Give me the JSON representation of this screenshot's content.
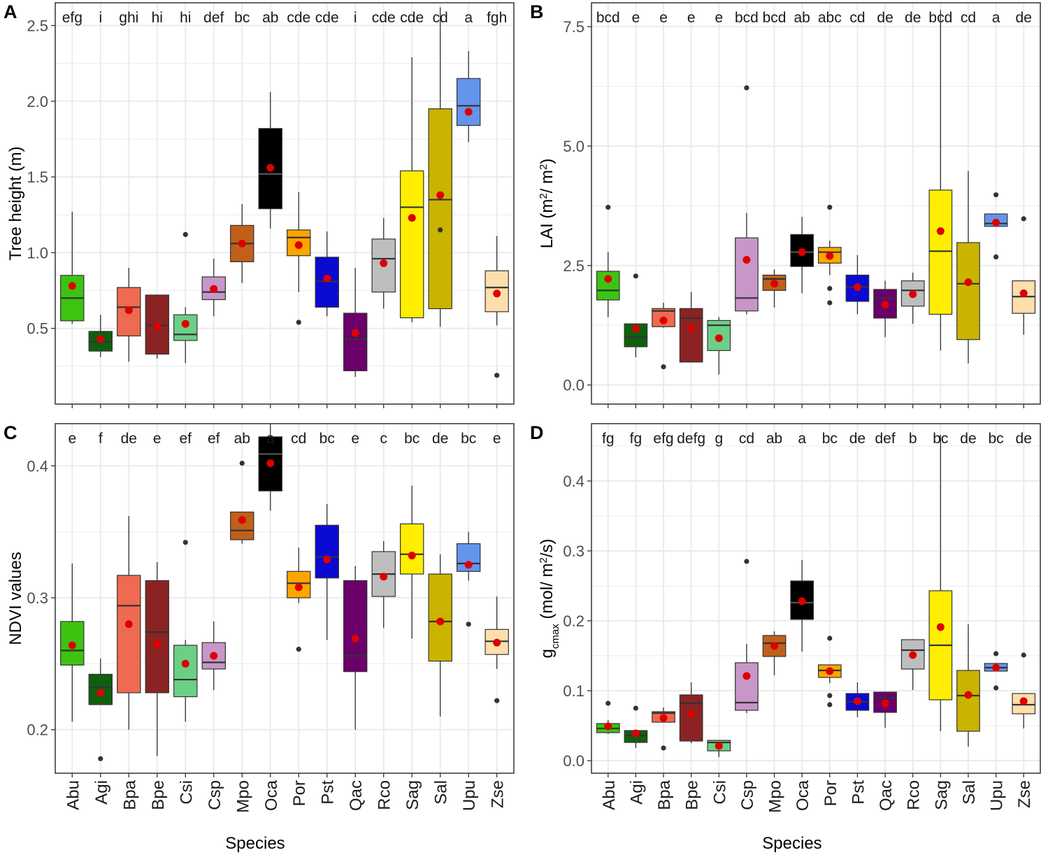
{
  "figure": {
    "xlabel_bottom_left": "Species",
    "xlabel_bottom_right": "Species"
  },
  "colors": {
    "Abu": "#3cc411",
    "Agi": "#0f5f0f",
    "Bpa": "#ee6a50",
    "Bpe": "#8b2323",
    "Csi": "#6ccf86",
    "Csp": "#c896c8",
    "Mpo": "#c0601a",
    "Oca": "#000000",
    "Por": "#ffa500",
    "Pst": "#0a0ad2",
    "Qac": "#6b006b",
    "Rco": "#bebebe",
    "Sag": "#ffee00",
    "Sal": "#c9b400",
    "Upu": "#6495ed",
    "Zse": "#ffdead",
    "mean_point": "#dd0000",
    "grid": "#ebebeb",
    "outlier": "#333333"
  },
  "chart_data": [
    {
      "panel": "A",
      "type": "box",
      "categories": [
        "Abu",
        "Agi",
        "Bpa",
        "Bpe",
        "Csi",
        "Csp",
        "Mpo",
        "Oca",
        "Por",
        "Pst",
        "Qac",
        "Rco",
        "Sag",
        "Sal",
        "Upu",
        "Zse"
      ],
      "ylabel": "Tree height (m)",
      "ylim": [
        0.0,
        2.65
      ],
      "yticks": [
        0.5,
        1.0,
        1.5,
        2.0,
        2.5
      ],
      "ytick_labels": [
        "0.5",
        "1.0",
        "1.5",
        "2.0",
        "2.5"
      ],
      "significance": [
        "efg",
        "i",
        "ghi",
        "hi",
        "hi",
        "def",
        "bc",
        "ab",
        "cde",
        "cde",
        "i",
        "cde",
        "cde",
        "cd",
        "a",
        "fgh"
      ],
      "boxes": [
        {
          "wlo": 0.53,
          "q1": 0.55,
          "med": 0.7,
          "q3": 0.85,
          "whi": 1.27,
          "mean": 0.78,
          "out": []
        },
        {
          "wlo": 0.31,
          "q1": 0.35,
          "med": 0.41,
          "q3": 0.48,
          "whi": 0.59,
          "mean": 0.43,
          "out": []
        },
        {
          "wlo": 0.28,
          "q1": 0.45,
          "med": 0.64,
          "q3": 0.77,
          "whi": 0.9,
          "mean": 0.62,
          "out": []
        },
        {
          "wlo": 0.3,
          "q1": 0.33,
          "med": 0.52,
          "q3": 0.72,
          "whi": 0.72,
          "mean": 0.51,
          "out": []
        },
        {
          "wlo": 0.27,
          "q1": 0.42,
          "med": 0.46,
          "q3": 0.59,
          "whi": 0.64,
          "mean": 0.53,
          "out": [
            1.12
          ]
        },
        {
          "wlo": 0.58,
          "q1": 0.69,
          "med": 0.74,
          "q3": 0.84,
          "whi": 0.96,
          "mean": 0.76,
          "out": []
        },
        {
          "wlo": 0.8,
          "q1": 0.94,
          "med": 1.06,
          "q3": 1.18,
          "whi": 1.32,
          "mean": 1.06,
          "out": []
        },
        {
          "wlo": 1.16,
          "q1": 1.29,
          "med": 1.52,
          "q3": 1.82,
          "whi": 2.06,
          "mean": 1.56,
          "out": []
        },
        {
          "wlo": 0.74,
          "q1": 0.98,
          "med": 1.1,
          "q3": 1.15,
          "whi": 1.4,
          "mean": 1.05,
          "out": [
            0.54
          ]
        },
        {
          "wlo": 0.58,
          "q1": 0.64,
          "med": 0.81,
          "q3": 0.97,
          "whi": 1.14,
          "mean": 0.83,
          "out": []
        },
        {
          "wlo": 0.18,
          "q1": 0.22,
          "med": 0.43,
          "q3": 0.6,
          "whi": 0.9,
          "mean": 0.47,
          "out": []
        },
        {
          "wlo": 0.63,
          "q1": 0.74,
          "med": 0.96,
          "q3": 1.09,
          "whi": 1.23,
          "mean": 0.93,
          "out": []
        },
        {
          "wlo": 0.54,
          "q1": 0.57,
          "med": 1.3,
          "q3": 1.54,
          "whi": 2.29,
          "mean": 1.23,
          "out": []
        },
        {
          "wlo": 0.51,
          "q1": 0.63,
          "med": 1.35,
          "q3": 1.95,
          "whi": 2.62,
          "mean": 1.38,
          "out": [
            1.15
          ]
        },
        {
          "wlo": 1.73,
          "q1": 1.84,
          "med": 1.97,
          "q3": 2.15,
          "whi": 2.33,
          "mean": 1.93,
          "out": []
        },
        {
          "wlo": 0.52,
          "q1": 0.61,
          "med": 0.77,
          "q3": 0.88,
          "whi": 1.11,
          "mean": 0.73,
          "out": [
            0.19
          ]
        }
      ]
    },
    {
      "panel": "B",
      "type": "box",
      "categories": [
        "Abu",
        "Agi",
        "Bpa",
        "Bpe",
        "Csi",
        "Csp",
        "Mpo",
        "Oca",
        "Por",
        "Pst",
        "Qac",
        "Rco",
        "Sag",
        "Sal",
        "Upu",
        "Zse"
      ],
      "ylabel": "LAI (m²/m²)",
      "ylim": [
        -0.4,
        8.0
      ],
      "yticks": [
        0.0,
        2.5,
        5.0,
        7.5
      ],
      "ytick_labels": [
        "0.0",
        "2.5",
        "5.0",
        "7.5"
      ],
      "significance": [
        "bcd",
        "e",
        "e",
        "e",
        "e",
        "bcd",
        "bcd",
        "ab",
        "abc",
        "cd",
        "de",
        "de",
        "bcd",
        "cd",
        "a",
        "de"
      ],
      "boxes": [
        {
          "wlo": 1.42,
          "q1": 1.78,
          "med": 1.98,
          "q3": 2.38,
          "whi": 2.78,
          "mean": 2.22,
          "out": [
            3.72
          ]
        },
        {
          "wlo": 0.58,
          "q1": 0.8,
          "med": 1.0,
          "q3": 1.28,
          "whi": 1.28,
          "mean": 1.18,
          "out": [
            2.28
          ]
        },
        {
          "wlo": 1.2,
          "q1": 1.22,
          "med": 1.55,
          "q3": 1.6,
          "whi": 1.72,
          "mean": 1.35,
          "out": [
            0.38
          ]
        },
        {
          "wlo": 0.48,
          "q1": 0.48,
          "med": 1.4,
          "q3": 1.6,
          "whi": 1.95,
          "mean": 1.18,
          "out": []
        },
        {
          "wlo": 0.22,
          "q1": 0.72,
          "med": 1.25,
          "q3": 1.35,
          "whi": 1.42,
          "mean": 0.98,
          "out": []
        },
        {
          "wlo": 1.48,
          "q1": 1.55,
          "med": 1.82,
          "q3": 3.08,
          "whi": 3.6,
          "mean": 2.62,
          "out": [
            6.22
          ]
        },
        {
          "wlo": 1.62,
          "q1": 1.98,
          "med": 2.22,
          "q3": 2.3,
          "whi": 2.42,
          "mean": 2.12,
          "out": []
        },
        {
          "wlo": 1.92,
          "q1": 2.48,
          "med": 2.78,
          "q3": 3.15,
          "whi": 3.52,
          "mean": 2.78,
          "out": []
        },
        {
          "wlo": 2.3,
          "q1": 2.55,
          "med": 2.78,
          "q3": 2.88,
          "whi": 3.02,
          "mean": 2.7,
          "out": [
            2.02,
            1.72,
            3.72
          ]
        },
        {
          "wlo": 1.48,
          "q1": 1.75,
          "med": 2.05,
          "q3": 2.3,
          "whi": 2.72,
          "mean": 2.05,
          "out": []
        },
        {
          "wlo": 1.0,
          "q1": 1.4,
          "med": 1.82,
          "q3": 2.0,
          "whi": 2.18,
          "mean": 1.68,
          "out": []
        },
        {
          "wlo": 1.28,
          "q1": 1.65,
          "med": 1.98,
          "q3": 2.18,
          "whi": 2.35,
          "mean": 1.9,
          "out": []
        },
        {
          "wlo": 0.72,
          "q1": 1.48,
          "med": 2.8,
          "q3": 4.08,
          "whi": 7.85,
          "mean": 3.22,
          "out": []
        },
        {
          "wlo": 0.45,
          "q1": 0.95,
          "med": 2.12,
          "q3": 2.98,
          "whi": 4.48,
          "mean": 2.15,
          "out": []
        },
        {
          "wlo": 3.32,
          "q1": 3.32,
          "med": 3.38,
          "q3": 3.58,
          "whi": 3.58,
          "mean": 3.4,
          "out": [
            3.98,
            2.68
          ]
        },
        {
          "wlo": 1.05,
          "q1": 1.5,
          "med": 1.85,
          "q3": 2.18,
          "whi": 2.18,
          "mean": 1.92,
          "out": [
            3.48
          ]
        }
      ]
    },
    {
      "panel": "C",
      "type": "box",
      "categories": [
        "Abu",
        "Agi",
        "Bpa",
        "Bpe",
        "Csi",
        "Csp",
        "Mpo",
        "Oca",
        "Por",
        "Pst",
        "Qac",
        "Rco",
        "Sag",
        "Sal",
        "Upu",
        "Zse"
      ],
      "ylabel": "NDVI values",
      "ylim": [
        0.167,
        0.432
      ],
      "yticks": [
        0.2,
        0.3,
        0.4
      ],
      "ytick_labels": [
        "0.2",
        "0.3",
        "0.4"
      ],
      "significance": [
        "e",
        "f",
        "de",
        "e",
        "ef",
        "ef",
        "ab",
        "a",
        "cd",
        "bc",
        "e",
        "c",
        "bc",
        "de",
        "bc",
        "e"
      ],
      "boxes": [
        {
          "wlo": 0.206,
          "q1": 0.249,
          "med": 0.26,
          "q3": 0.282,
          "whi": 0.326,
          "mean": 0.264,
          "out": []
        },
        {
          "wlo": 0.219,
          "q1": 0.219,
          "med": 0.232,
          "q3": 0.242,
          "whi": 0.254,
          "mean": 0.228,
          "out": [
            0.178
          ]
        },
        {
          "wlo": 0.2,
          "q1": 0.228,
          "med": 0.294,
          "q3": 0.317,
          "whi": 0.362,
          "mean": 0.28,
          "out": []
        },
        {
          "wlo": 0.18,
          "q1": 0.228,
          "med": 0.274,
          "q3": 0.313,
          "whi": 0.327,
          "mean": 0.265,
          "out": []
        },
        {
          "wlo": 0.206,
          "q1": 0.225,
          "med": 0.238,
          "q3": 0.264,
          "whi": 0.268,
          "mean": 0.25,
          "out": [
            0.342
          ]
        },
        {
          "wlo": 0.23,
          "q1": 0.246,
          "med": 0.251,
          "q3": 0.266,
          "whi": 0.282,
          "mean": 0.256,
          "out": []
        },
        {
          "wlo": 0.341,
          "q1": 0.344,
          "med": 0.351,
          "q3": 0.365,
          "whi": 0.365,
          "mean": 0.359,
          "out": [
            0.402
          ]
        },
        {
          "wlo": 0.366,
          "q1": 0.381,
          "med": 0.409,
          "q3": 0.422,
          "whi": 0.432,
          "mean": 0.402,
          "out": []
        },
        {
          "wlo": 0.296,
          "q1": 0.3,
          "med": 0.311,
          "q3": 0.32,
          "whi": 0.338,
          "mean": 0.308,
          "out": [
            0.261
          ]
        },
        {
          "wlo": 0.268,
          "q1": 0.315,
          "med": 0.331,
          "q3": 0.355,
          "whi": 0.371,
          "mean": 0.329,
          "out": []
        },
        {
          "wlo": 0.2,
          "q1": 0.244,
          "med": 0.256,
          "q3": 0.313,
          "whi": 0.324,
          "mean": 0.269,
          "out": []
        },
        {
          "wlo": 0.277,
          "q1": 0.301,
          "med": 0.318,
          "q3": 0.335,
          "whi": 0.343,
          "mean": 0.316,
          "out": []
        },
        {
          "wlo": 0.269,
          "q1": 0.318,
          "med": 0.333,
          "q3": 0.356,
          "whi": 0.385,
          "mean": 0.332,
          "out": []
        },
        {
          "wlo": 0.21,
          "q1": 0.252,
          "med": 0.282,
          "q3": 0.318,
          "whi": 0.333,
          "mean": 0.282,
          "out": []
        },
        {
          "wlo": 0.313,
          "q1": 0.32,
          "med": 0.326,
          "q3": 0.341,
          "whi": 0.35,
          "mean": 0.325,
          "out": [
            0.28
          ]
        },
        {
          "wlo": 0.246,
          "q1": 0.257,
          "med": 0.267,
          "q3": 0.276,
          "whi": 0.301,
          "mean": 0.266,
          "out": [
            0.222
          ]
        }
      ]
    },
    {
      "panel": "D",
      "type": "box",
      "categories": [
        "Abu",
        "Agi",
        "Bpa",
        "Bpe",
        "Csi",
        "Csp",
        "Mpo",
        "Oca",
        "Por",
        "Pst",
        "Qac",
        "Rco",
        "Sag",
        "Sal",
        "Upu",
        "Zse"
      ],
      "ylabel": "gcmax (mol/m²/s)",
      "ylabel_parts": {
        "g": "g",
        "sub": "cmax",
        "unit_a": " (mol/ m",
        "sup": "2",
        "unit_b": "/s)"
      },
      "ylim": [
        -0.018,
        0.482
      ],
      "yticks": [
        0.0,
        0.1,
        0.2,
        0.3,
        0.4
      ],
      "ytick_labels": [
        "0.0",
        "0.1",
        "0.2",
        "0.3",
        "0.4"
      ],
      "significance": [
        "fg",
        "fg",
        "efg",
        "defg",
        "g",
        "cd",
        "ab",
        "a",
        "bc",
        "de",
        "def",
        "b",
        "bc",
        "de",
        "bc",
        "de"
      ],
      "boxes": [
        {
          "wlo": 0.038,
          "q1": 0.04,
          "med": 0.046,
          "q3": 0.053,
          "whi": 0.058,
          "mean": 0.049,
          "out": [
            0.082
          ]
        },
        {
          "wlo": 0.018,
          "q1": 0.026,
          "med": 0.036,
          "q3": 0.043,
          "whi": 0.043,
          "mean": 0.039,
          "out": [
            0.075
          ]
        },
        {
          "wlo": 0.055,
          "q1": 0.055,
          "med": 0.068,
          "q3": 0.07,
          "whi": 0.076,
          "mean": 0.061,
          "out": [
            0.018
          ]
        },
        {
          "wlo": 0.025,
          "q1": 0.028,
          "med": 0.082,
          "q3": 0.094,
          "whi": 0.112,
          "mean": 0.067,
          "out": []
        },
        {
          "wlo": 0.005,
          "q1": 0.014,
          "med": 0.026,
          "q3": 0.029,
          "whi": 0.029,
          "mean": 0.021,
          "out": []
        },
        {
          "wlo": 0.068,
          "q1": 0.072,
          "med": 0.083,
          "q3": 0.14,
          "whi": 0.167,
          "mean": 0.121,
          "out": [
            0.285
          ]
        },
        {
          "wlo": 0.122,
          "q1": 0.149,
          "med": 0.168,
          "q3": 0.179,
          "whi": 0.185,
          "mean": 0.164,
          "out": []
        },
        {
          "wlo": 0.156,
          "q1": 0.202,
          "med": 0.226,
          "q3": 0.257,
          "whi": 0.287,
          "mean": 0.228,
          "out": []
        },
        {
          "wlo": 0.111,
          "q1": 0.119,
          "med": 0.129,
          "q3": 0.137,
          "whi": 0.137,
          "mean": 0.128,
          "out": [
            0.08,
            0.093,
            0.175
          ]
        },
        {
          "wlo": 0.062,
          "q1": 0.072,
          "med": 0.084,
          "q3": 0.096,
          "whi": 0.112,
          "mean": 0.085,
          "out": []
        },
        {
          "wlo": 0.047,
          "q1": 0.069,
          "med": 0.09,
          "q3": 0.098,
          "whi": 0.098,
          "mean": 0.082,
          "out": []
        },
        {
          "wlo": 0.101,
          "q1": 0.131,
          "med": 0.158,
          "q3": 0.173,
          "whi": 0.173,
          "mean": 0.151,
          "out": []
        },
        {
          "wlo": 0.042,
          "q1": 0.087,
          "med": 0.165,
          "q3": 0.243,
          "whi": 0.466,
          "mean": 0.191,
          "out": []
        },
        {
          "wlo": 0.02,
          "q1": 0.042,
          "med": 0.093,
          "q3": 0.129,
          "whi": 0.195,
          "mean": 0.094,
          "out": []
        },
        {
          "wlo": 0.128,
          "q1": 0.128,
          "med": 0.133,
          "q3": 0.139,
          "whi": 0.139,
          "mean": 0.133,
          "out": [
            0.104,
            0.153
          ]
        },
        {
          "wlo": 0.046,
          "q1": 0.067,
          "med": 0.08,
          "q3": 0.096,
          "whi": 0.096,
          "mean": 0.085,
          "out": [
            0.151
          ]
        }
      ]
    }
  ]
}
